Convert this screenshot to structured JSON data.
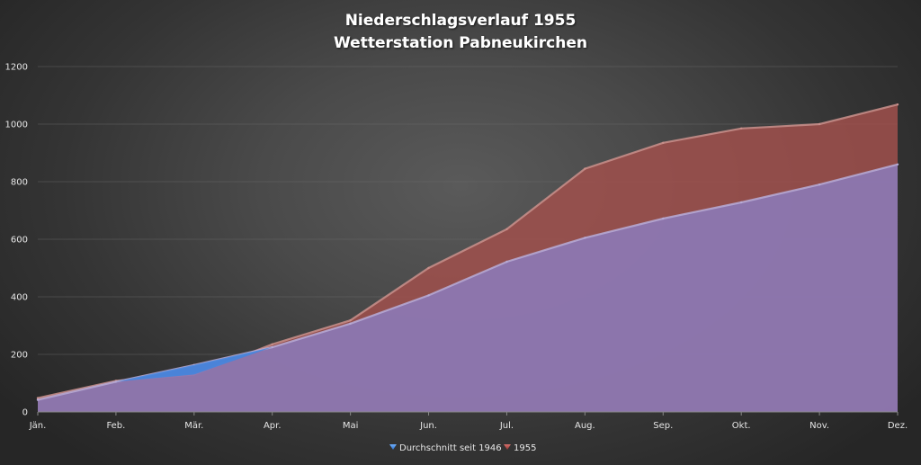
{
  "chart_data": {
    "type": "area",
    "title": [
      "Niederschlagsverlauf 1955",
      "Wetterstation Pabneukirchen"
    ],
    "categories": [
      "Jän.",
      "Feb.",
      "Mär.",
      "Apr.",
      "Mai",
      "Jun.",
      "Jul.",
      "Aug.",
      "Sep.",
      "Okt.",
      "Nov.",
      "Dez."
    ],
    "series": [
      {
        "name": "1955",
        "color": "#a0504c",
        "values": [
          48,
          108,
          130,
          235,
          318,
          500,
          635,
          845,
          935,
          985,
          1000,
          1068
        ]
      },
      {
        "name": "Durchschnitt seit 1946",
        "color": "#8c78b4",
        "values": [
          42,
          105,
          163,
          225,
          307,
          405,
          522,
          605,
          672,
          728,
          790,
          860
        ]
      }
    ],
    "legend_order": [
      "Durchschnitt seit 1946",
      "1955"
    ],
    "legend_colors": {
      "Durchschnitt seit 1946": "#4a90e2",
      "1955": "#c0504d"
    },
    "ylim": [
      0,
      1200
    ],
    "yticks": [
      0,
      200,
      400,
      600,
      800,
      1000,
      1200
    ],
    "grid": true,
    "legend_position": "bottom"
  }
}
